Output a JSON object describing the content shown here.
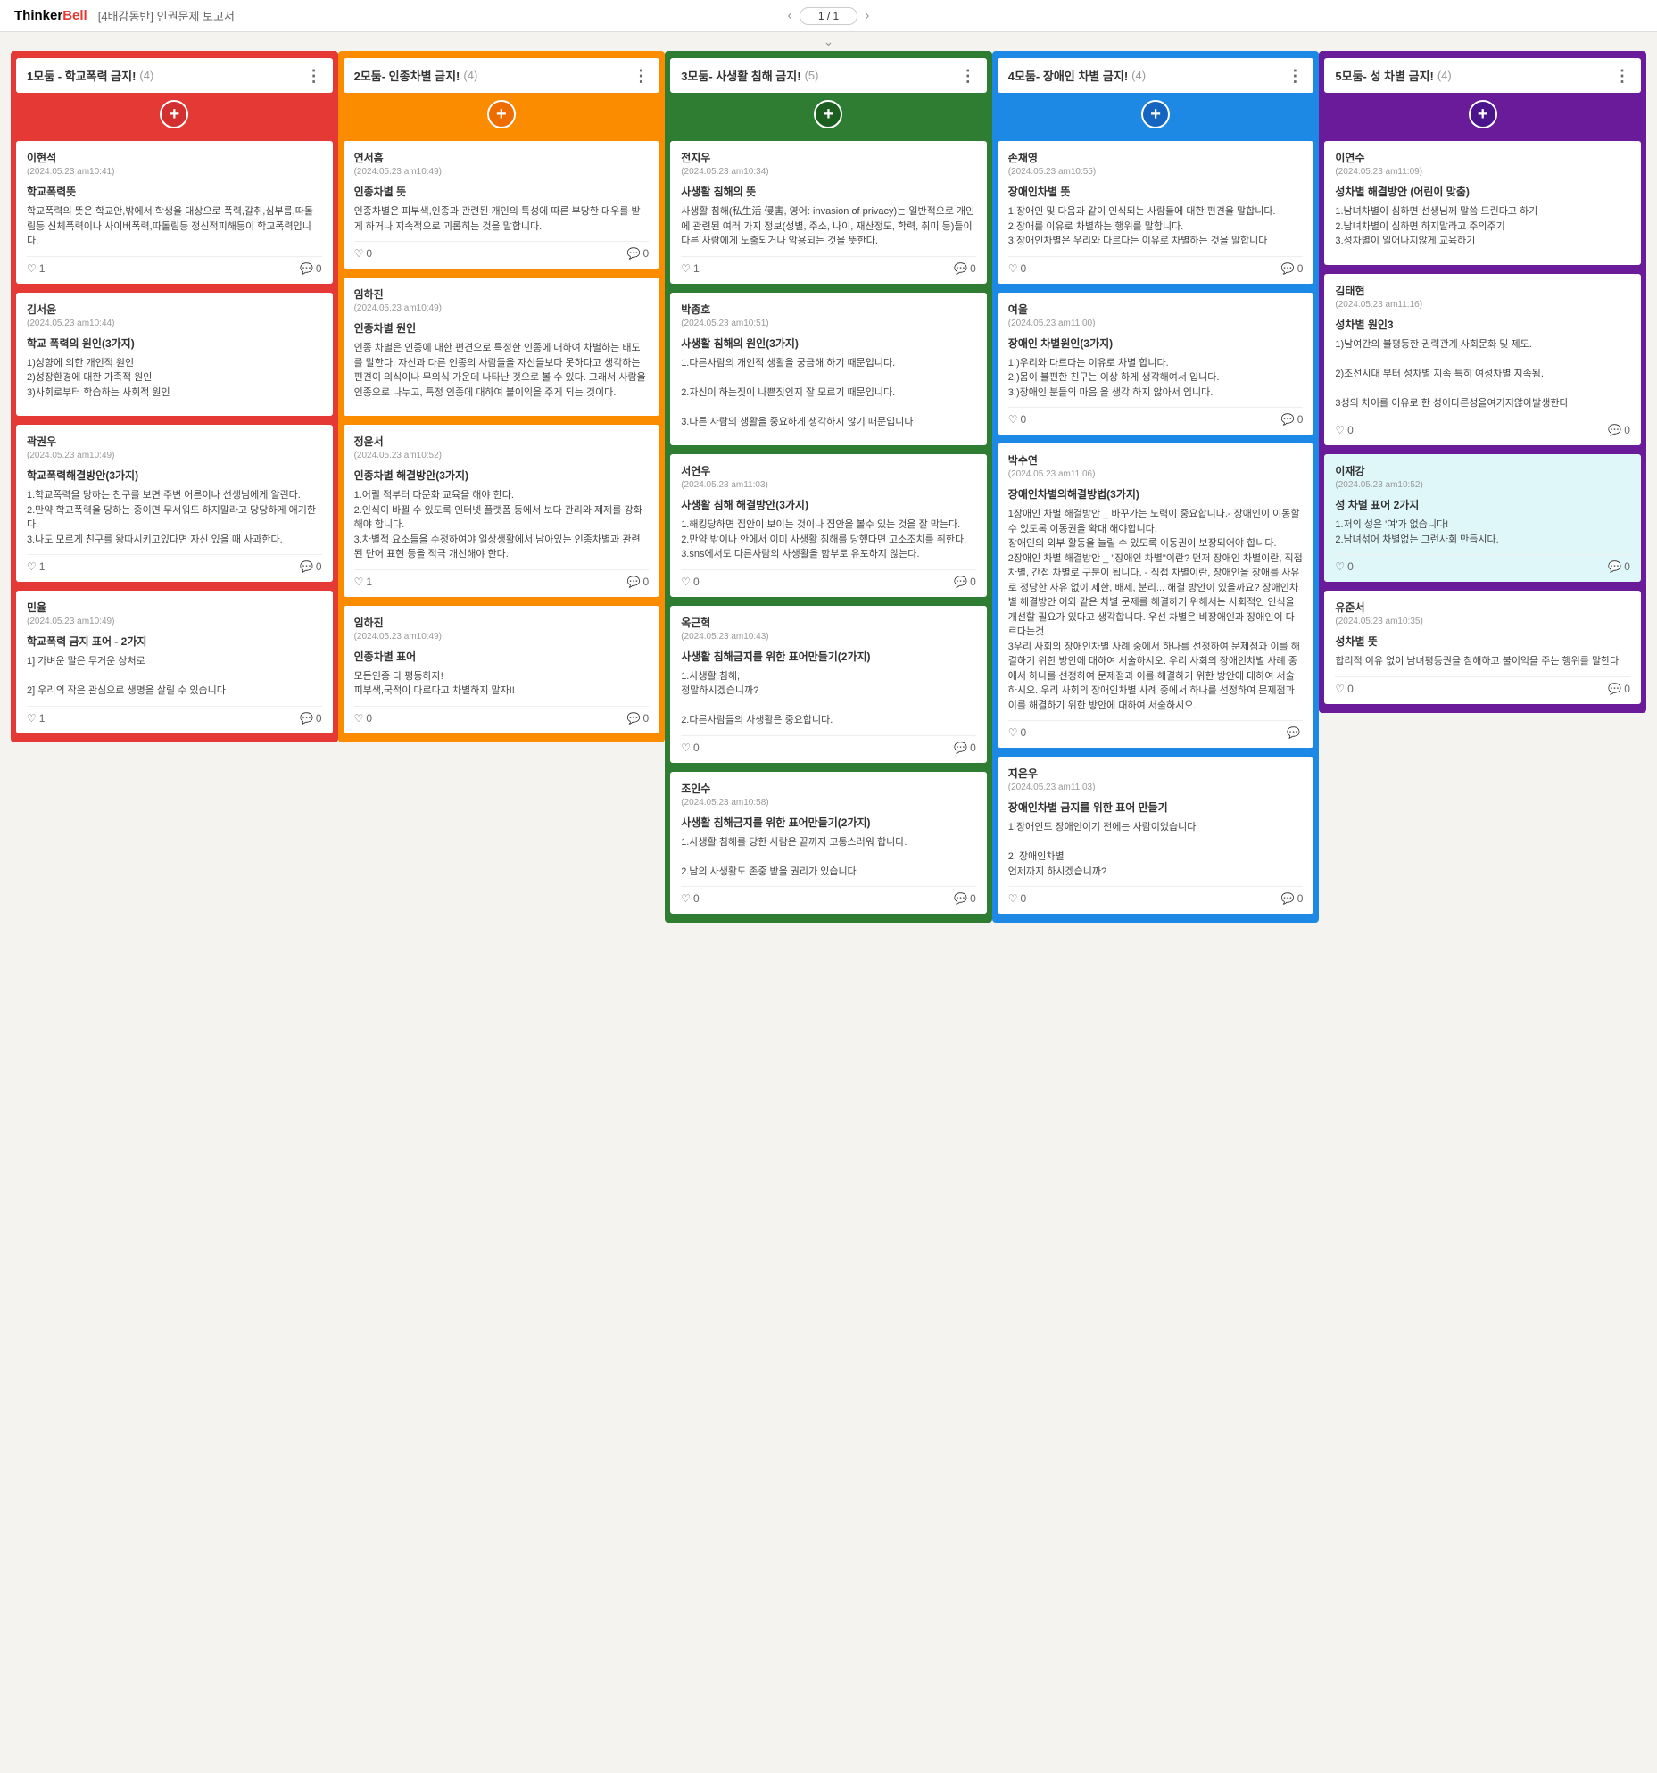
{
  "header": {
    "logo1": "Thinker",
    "logo2": "Bell",
    "doc_title": "[4배감동반] 인권문제 보고서",
    "page": "1 / 1"
  },
  "columns": [
    {
      "title": "1모둠 - 학교폭력 금지!",
      "count": "(4)",
      "color": "col-1",
      "cards": [
        {
          "author": "이현석",
          "date": "(2024.05.23 am10:41)",
          "title": "학교폭력뜻",
          "body": "학교폭력의 뜻은 학교안,밖에서 학생을 대상으로 폭력,갈취,심부름,따돌림등 신체폭력이나 사이버폭력,따돌림등 정신적피해등이 학교폭력입니다.",
          "likes": "1",
          "comments": "0"
        },
        {
          "author": "김서윤",
          "date": "(2024.05.23 am10:44)",
          "title": "학교 폭력의 원인(3가지)",
          "body": "1)성향에 의한 개인적 원인\n2)성장환경에 대한 가족적 원인\n3)사회로부터 학습하는 사회적 원인",
          "likes": "",
          "comments": ""
        },
        {
          "author": "곽권우",
          "date": "(2024.05.23 am10:49)",
          "title": "학교폭력해결방안(3가지)",
          "body": "1.학교폭력을 당하는 친구를 보면 주변 어른이나 선생님에게 알린다.\n2.만약 학교폭력을 당하는 중이면 무서워도 하지말라고 당당하게 애기한다.\n3.나도 모르게 친구를 왕따시키고있다면 자신 있을 때 사과한다.",
          "likes": "1",
          "comments": "0"
        },
        {
          "author": "민율",
          "date": "(2024.05.23 am10:49)",
          "title": "학교폭력 금지 표어 - 2가지",
          "body": "1] 가벼운 말은 무거운 상처로\n\n2] 우리의 작은 관심으로 생명을 살릴 수 있습니다",
          "likes": "1",
          "comments": "0"
        }
      ]
    },
    {
      "title": "2모둠- 인종차별 금지!",
      "count": "(4)",
      "color": "col-2",
      "cards": [
        {
          "author": "연서흠",
          "date": "(2024.05.23 am10:49)",
          "title": "인종차별 뜻",
          "body": "인종차별은 피부색,인종과 관련된 개인의 특성에 따른 부당한 대우를 받게 하거나 지속적으로 괴롭히는 것을 말합니다.",
          "likes": "0",
          "comments": "0"
        },
        {
          "author": "임하진",
          "date": "(2024.05.23 am10:49)",
          "title": "인종차별 원인",
          "body": "인종 차별은 인종에 대한 편견으로 특정한 인종에 대하여 차별하는 태도를 말한다. 자신과 다른 인종의 사람들을 자신들보다 못하다고 생각하는 편견이 의식이나 무의식 가운데 나타난 것으로 볼 수 있다. 그래서 사람을 인종으로 나누고, 특정 인종에 대하여 불이익을 주게 되는 것이다.",
          "likes": "",
          "comments": ""
        },
        {
          "author": "정윤서",
          "date": "(2024.05.23 am10:52)",
          "title": "인종차별 해결방안(3가지)",
          "body": "1.어릴 적부터 다문화 교육을 해야 한다.\n2.인식이 바뀔 수 있도록 인터넷 플랫폼 등에서 보다 관리와 제제를 강화해야 합니다.\n3.차별적 요소들을 수정하여야 일상생활에서 남아있는 인종차별과 관련된 단어 표현 등을 적극 개선해야 한다.",
          "likes": "1",
          "comments": "0"
        },
        {
          "author": "임하진",
          "date": "(2024.05.23 am10:49)",
          "title": "인종차별 표어",
          "body": "모든인종 다 평등하자!\n피부색,국적이 다르다고 차별하지 말자!!",
          "likes": "0",
          "comments": "0"
        }
      ]
    },
    {
      "title": "3모둠- 사생활 침해 금지!",
      "count": "(5)",
      "color": "col-3",
      "cards": [
        {
          "author": "전지우",
          "date": "(2024.05.23 am10:34)",
          "title": "사생활 침해의 뜻",
          "body": "사생활 침해(私生活 侵害, 영어: invasion of privacy)는 일반적으로 개인에 관련된 여러 가지 정보(성별, 주소, 나이, 재산정도, 학력, 취미 등)들이 다른 사람에게 노출되거나 악용되는 것을 뜻한다.",
          "likes": "1",
          "comments": "0"
        },
        {
          "author": "박종호",
          "date": "(2024.05.23 am10:51)",
          "title": "사생활 침해의 원인(3가지)",
          "body": "1.다른사람의 개인적 생활을 궁금해 하기 때문입니다.\n\n2.자신이 하는짓이 나쁜짓인지 잘 모르기 때문입니다.\n\n3.다른 사람의 생활을 중요하게 생각하지 않기 때문입니다",
          "likes": "",
          "comments": ""
        },
        {
          "author": "서연우",
          "date": "(2024.05.23 am11:03)",
          "title": "사생활 침해 해결방안(3가지)",
          "body": "1.해킹당하면 집안이 보이는 것이나 집안을 볼수 있는 것을 잘 막는다.\n2.만약 밖이나 안에서 이미 사생활 침해를 당했다면 고소조치를 취한다.\n3.sns에서도 다른사람의 사생활을 함부로 유포하지 않는다.",
          "likes": "0",
          "comments": "0"
        },
        {
          "author": "옥근혁",
          "date": "(2024.05.23 am10:43)",
          "title": "사생활 침해금지를 위한 표어만들기(2가지)",
          "body": "1.사생활 침해,\n정말하시겠습니까?\n\n2.다른사람들의 사생활은 중요합니다.",
          "likes": "0",
          "comments": "0"
        },
        {
          "author": "조인수",
          "date": "(2024.05.23 am10:58)",
          "title": "사생활 침해금지를 위한 표어만들기(2가지)",
          "body": "1.사생활 침해를 당한 사람은 끝까지 고통스러워 합니다.\n\n2.남의 사생활도 존중 받을 권리가 있습니다.",
          "likes": "0",
          "comments": "0"
        }
      ]
    },
    {
      "title": "4모둠- 장애인 차별 금지!",
      "count": "(4)",
      "color": "col-4",
      "cards": [
        {
          "author": "손채영",
          "date": "(2024.05.23 am10:55)",
          "title": "장애인차별 뜻",
          "body": "1.장애인 및 다음과 같이 인식되는 사람들에 대한 편견을 말합니다.\n2.장애를 이유로 차별하는 행위를 말합니다.\n3.장애인차별은 우리와 다르다는 이유로 차별하는 것을 말합니다",
          "likes": "0",
          "comments": "0"
        },
        {
          "author": "여울",
          "date": "(2024.05.23 am11:00)",
          "title": "장애인 차별원인(3가지)",
          "body": "1.)우리와 다르다는 이유로 차별 합니다.\n2.)몸이 불편한 친구는 이상 하게 생각해여서 입니다.\n3.)장애인 분들의 마음 을 생각 하지 않아서 입니다.",
          "likes": "0",
          "comments": "0"
        },
        {
          "author": "박수연",
          "date": "(2024.05.23 am11:06)",
          "title": "장애인차별의해결방법(3가지)",
          "body": "1장애인 차별 해결방안 _ 바꾸가는 노력이 중요합니다.- 장애인이 이동할 수 있도록 이동권을 확대 해야합니다.\n장애인의 외부 활동을 늘릴 수 있도록 이동권이 보장되어야 합니다.\n2장애인 차별 해결방안 _ \"장애인 차별\"이란? 먼저 장애인 차별이란, 직접 차별, 간접 차별로 구분이 됩니다. - 직접 차별이란, 장애인을 장애를 사유로 정당한 사유 없이 제한, 배제, 분리... 해결 방안이 있을까요? 장애인차별 해결방안 이와 같은 차별 문제를 해결하기 위해서는 사회적인 인식을 개선할 필요가 있다고 생각합니다. 우선 차별은 비장애인과 장애인이 다르다는것\n3우리 사회의 장애인차별 사례 중에서 하나를 선정하여 문제점과 이를 해결하기 위한 방안에 대하여 서술하시오. 우리 사회의 장애인차별 사례 중에서 하나를 선정하여 문제점과 이를 해결하기 위한 방안에 대하여 서술하시오. 우리 사회의 장애인차별 사례 중에서 하나를 선정하여 문제점과 이를 해결하기 위한 방안에 대하여 서술하시오.",
          "likes": "0",
          "comments": ""
        },
        {
          "author": "지은우",
          "date": "(2024.05.23 am11:03)",
          "title": "장애인차별 금지를 위한 표어 만들기",
          "body": "1.장애인도 장애인이기 전에는 사람이었습니다\n\n2. 장애인차별\n언제까지 하시겠습니까?",
          "likes": "0",
          "comments": "0"
        }
      ]
    },
    {
      "title": "5모둠- 성 차별 금지!",
      "count": "(4)",
      "color": "col-5",
      "cards": [
        {
          "author": "이연수",
          "date": "(2024.05.23 am11:09)",
          "title": "성차별 해결방안 (어린이 맞춤)",
          "body": "1.남녀차별이 심하면 선생님께 말씀 드린다고 하기\n2.남녀차별이 심하면 하지말라고 주의주기\n3.성차별이 일어나지않게 교육하기",
          "likes": "",
          "comments": ""
        },
        {
          "author": "김태현",
          "date": "(2024.05.23 am11:16)",
          "title": "성차별 원인3",
          "body": "1)남여간의 불평등한 권력관계 사회문화 및 제도.\n\n2)조선시대 부터 성차별 지속 특히 여성차별 지속됨.\n\n3성의 차이를 이유로 한 성이다른성을여기지않아발생한다",
          "likes": "0",
          "comments": "0"
        },
        {
          "author": "이재강",
          "date": "(2024.05.23 am10:52)",
          "title": "성 차별 표어 2가지",
          "body": "1.저의 성은 '여'가 없습니다!\n2.남녀섞어 차별없는 그런사회 만듭시다.",
          "likes": "0",
          "comments": "0",
          "hl": true
        },
        {
          "author": "유준서",
          "date": "(2024.05.23 am10:35)",
          "title": "성차별 뜻",
          "body": "합리적 이유 없이 남녀평등권을 침해하고 불이익을 주는 행위를 말한다",
          "likes": "0",
          "comments": "0"
        }
      ]
    }
  ]
}
